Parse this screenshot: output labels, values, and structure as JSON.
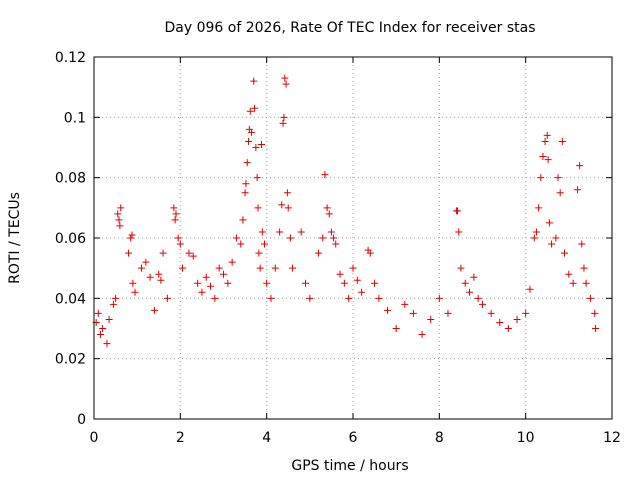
{
  "chart_data": {
    "type": "scatter",
    "title": "Day 096 of 2026, Rate Of TEC Index for receiver stas",
    "xlabel": "GPS time / hours",
    "ylabel": "ROTI / TECUs",
    "xlim": [
      0,
      12
    ],
    "ylim": [
      0,
      0.12
    ],
    "x_ticks": [
      0,
      2,
      4,
      6,
      8,
      10,
      12
    ],
    "y_ticks": [
      0,
      0.02,
      0.04,
      0.06,
      0.08,
      0.1,
      0.12
    ],
    "x_tick_labels": [
      "0",
      "2",
      "4",
      "6",
      "8",
      "10",
      "12"
    ],
    "y_tick_labels": [
      "0",
      "0.02",
      "0.04",
      "0.06",
      "0.08",
      "0.1",
      "0.12"
    ],
    "grid": true,
    "marker": "+",
    "color": "#e00000",
    "series": [
      {
        "name": "ROTI",
        "points": [
          [
            0.05,
            0.032
          ],
          [
            0.1,
            0.035
          ],
          [
            0.15,
            0.028
          ],
          [
            0.2,
            0.03
          ],
          [
            0.3,
            0.025
          ],
          [
            0.35,
            0.033
          ],
          [
            0.45,
            0.038
          ],
          [
            0.5,
            0.04
          ],
          [
            0.55,
            0.068
          ],
          [
            0.58,
            0.066
          ],
          [
            0.62,
            0.07
          ],
          [
            0.6,
            0.064
          ],
          [
            0.8,
            0.055
          ],
          [
            0.85,
            0.06
          ],
          [
            0.88,
            0.061
          ],
          [
            0.9,
            0.045
          ],
          [
            0.95,
            0.042
          ],
          [
            1.1,
            0.05
          ],
          [
            1.2,
            0.052
          ],
          [
            1.3,
            0.047
          ],
          [
            1.4,
            0.036
          ],
          [
            1.5,
            0.048
          ],
          [
            1.55,
            0.046
          ],
          [
            1.6,
            0.055
          ],
          [
            1.7,
            0.04
          ],
          [
            1.85,
            0.07
          ],
          [
            1.9,
            0.068
          ],
          [
            1.88,
            0.066
          ],
          [
            1.95,
            0.06
          ],
          [
            2.0,
            0.058
          ],
          [
            2.05,
            0.05
          ],
          [
            2.2,
            0.055
          ],
          [
            2.3,
            0.054
          ],
          [
            2.4,
            0.045
          ],
          [
            2.5,
            0.042
          ],
          [
            2.6,
            0.047
          ],
          [
            2.7,
            0.044
          ],
          [
            2.8,
            0.04
          ],
          [
            2.9,
            0.05
          ],
          [
            3.0,
            0.048
          ],
          [
            3.1,
            0.045
          ],
          [
            3.2,
            0.052
          ],
          [
            3.3,
            0.06
          ],
          [
            3.4,
            0.058
          ],
          [
            3.45,
            0.066
          ],
          [
            3.5,
            0.075
          ],
          [
            3.52,
            0.078
          ],
          [
            3.55,
            0.085
          ],
          [
            3.58,
            0.092
          ],
          [
            3.6,
            0.096
          ],
          [
            3.62,
            0.102
          ],
          [
            3.65,
            0.095
          ],
          [
            3.7,
            0.112
          ],
          [
            3.72,
            0.103
          ],
          [
            3.75,
            0.09
          ],
          [
            3.78,
            0.08
          ],
          [
            3.8,
            0.07
          ],
          [
            3.82,
            0.055
          ],
          [
            3.85,
            0.05
          ],
          [
            3.88,
            0.091
          ],
          [
            3.9,
            0.062
          ],
          [
            3.95,
            0.058
          ],
          [
            4.0,
            0.045
          ],
          [
            4.1,
            0.04
          ],
          [
            4.2,
            0.05
          ],
          [
            4.3,
            0.062
          ],
          [
            4.35,
            0.071
          ],
          [
            4.38,
            0.098
          ],
          [
            4.4,
            0.1
          ],
          [
            4.42,
            0.113
          ],
          [
            4.45,
            0.111
          ],
          [
            4.48,
            0.075
          ],
          [
            4.5,
            0.07
          ],
          [
            4.55,
            0.06
          ],
          [
            4.6,
            0.05
          ],
          [
            4.8,
            0.062
          ],
          [
            4.9,
            0.045
          ],
          [
            5.0,
            0.04
          ],
          [
            5.2,
            0.055
          ],
          [
            5.3,
            0.06
          ],
          [
            5.35,
            0.081
          ],
          [
            5.4,
            0.07
          ],
          [
            5.45,
            0.068
          ],
          [
            5.5,
            0.062
          ],
          [
            5.55,
            0.06
          ],
          [
            5.6,
            0.058
          ],
          [
            5.7,
            0.048
          ],
          [
            5.8,
            0.045
          ],
          [
            5.9,
            0.04
          ],
          [
            6.0,
            0.05
          ],
          [
            6.1,
            0.046
          ],
          [
            6.2,
            0.042
          ],
          [
            6.35,
            0.056
          ],
          [
            6.4,
            0.055
          ],
          [
            6.5,
            0.045
          ],
          [
            6.6,
            0.04
          ],
          [
            6.8,
            0.036
          ],
          [
            7.0,
            0.03
          ],
          [
            7.2,
            0.038
          ],
          [
            7.4,
            0.035
          ],
          [
            7.6,
            0.028
          ],
          [
            7.8,
            0.033
          ],
          [
            8.0,
            0.04
          ],
          [
            8.2,
            0.035
          ],
          [
            8.4,
            0.069
          ],
          [
            8.42,
            0.069
          ],
          [
            8.45,
            0.062
          ],
          [
            8.5,
            0.05
          ],
          [
            8.6,
            0.045
          ],
          [
            8.7,
            0.042
          ],
          [
            8.8,
            0.047
          ],
          [
            8.9,
            0.04
          ],
          [
            9.0,
            0.038
          ],
          [
            9.2,
            0.035
          ],
          [
            9.4,
            0.032
          ],
          [
            9.6,
            0.03
          ],
          [
            9.8,
            0.033
          ],
          [
            10.0,
            0.035
          ],
          [
            10.1,
            0.043
          ],
          [
            10.2,
            0.06
          ],
          [
            10.25,
            0.062
          ],
          [
            10.3,
            0.07
          ],
          [
            10.35,
            0.08
          ],
          [
            10.4,
            0.087
          ],
          [
            10.45,
            0.092
          ],
          [
            10.5,
            0.094
          ],
          [
            10.52,
            0.086
          ],
          [
            10.55,
            0.065
          ],
          [
            10.6,
            0.058
          ],
          [
            10.7,
            0.06
          ],
          [
            10.75,
            0.08
          ],
          [
            10.8,
            0.075
          ],
          [
            10.85,
            0.092
          ],
          [
            10.9,
            0.055
          ],
          [
            11.0,
            0.048
          ],
          [
            11.1,
            0.045
          ],
          [
            11.2,
            0.076
          ],
          [
            11.25,
            0.084
          ],
          [
            11.3,
            0.058
          ],
          [
            11.35,
            0.05
          ],
          [
            11.4,
            0.045
          ],
          [
            11.5,
            0.04
          ],
          [
            11.6,
            0.035
          ],
          [
            11.62,
            0.03
          ]
        ]
      }
    ]
  }
}
